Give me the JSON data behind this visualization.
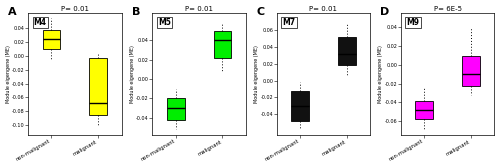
{
  "panels": [
    {
      "label": "A",
      "module": "M4",
      "pvalue": "P= 0.01",
      "color": "#FFFF00",
      "ylabel": "Module eigengene (ME)",
      "xlabels": [
        "non-malignant",
        "malignant"
      ],
      "boxes": [
        {
          "med": 0.025,
          "q1": 0.01,
          "q3": 0.038,
          "whislo": -0.005,
          "whishi": 0.055,
          "fliers": []
        },
        {
          "med": -0.068,
          "q1": -0.085,
          "q3": -0.003,
          "whislo": -0.1,
          "whishi": 0.005,
          "fliers": []
        }
      ],
      "yticks": [
        -0.1,
        -0.08,
        -0.06,
        -0.04,
        -0.02,
        0.0,
        0.02,
        0.04
      ],
      "ylim": [
        -0.115,
        0.062
      ]
    },
    {
      "label": "B",
      "module": "M5",
      "pvalue": "P= 0.01",
      "color": "#00EE00",
      "ylabel": "Module eigengene (ME)",
      "xlabels": [
        "non-malignant",
        "malignant"
      ],
      "boxes": [
        {
          "med": -0.03,
          "q1": -0.042,
          "q3": -0.02,
          "whislo": -0.052,
          "whishi": -0.01,
          "fliers": []
        },
        {
          "med": 0.04,
          "q1": 0.022,
          "q3": 0.05,
          "whislo": 0.008,
          "whishi": 0.058,
          "fliers": []
        }
      ],
      "yticks": [
        -0.04,
        -0.02,
        0.0,
        0.02,
        0.04
      ],
      "ylim": [
        -0.058,
        0.068
      ]
    },
    {
      "label": "C",
      "module": "M7",
      "pvalue": "P= 0.01",
      "color": "#111111",
      "ylabel": "Module eigengene (ME)",
      "xlabels": [
        "non-malignant",
        "malignant"
      ],
      "boxes": [
        {
          "med": -0.03,
          "q1": -0.048,
          "q3": -0.012,
          "whislo": -0.058,
          "whishi": -0.002,
          "fliers": []
        },
        {
          "med": 0.032,
          "q1": 0.018,
          "q3": 0.052,
          "whislo": 0.005,
          "whishi": 0.068,
          "fliers": []
        }
      ],
      "yticks": [
        -0.04,
        -0.02,
        0.0,
        0.02,
        0.04,
        0.06
      ],
      "ylim": [
        -0.065,
        0.08
      ]
    },
    {
      "label": "D",
      "module": "M9",
      "pvalue": "P= 6E-5",
      "color": "#FF00FF",
      "ylabel": "Module eigengene (ME)",
      "xlabels": [
        "non-malignant",
        "malignant"
      ],
      "boxes": [
        {
          "med": -0.048,
          "q1": -0.058,
          "q3": -0.038,
          "whislo": -0.068,
          "whishi": -0.025,
          "fliers": []
        },
        {
          "med": -0.01,
          "q1": -0.022,
          "q3": 0.01,
          "whislo": -0.032,
          "whishi": 0.04,
          "fliers": []
        }
      ],
      "yticks": [
        -0.06,
        -0.04,
        -0.02,
        0.0,
        0.02,
        0.04
      ],
      "ylim": [
        -0.075,
        0.055
      ]
    }
  ],
  "background_color": "#ffffff",
  "fig_width": 5.0,
  "fig_height": 1.68
}
